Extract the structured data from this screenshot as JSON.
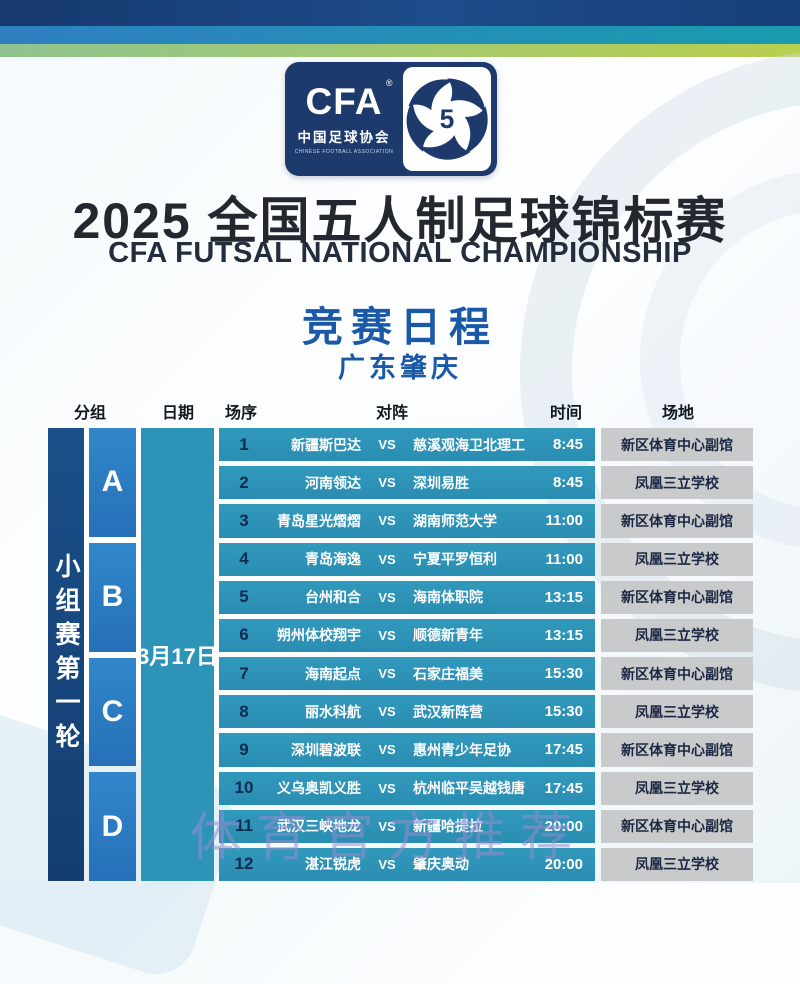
{
  "page": {
    "title_cn": "2025 全国五人制足球锦标赛",
    "title_en": "CFA FUTSAL NATIONAL CHAMPIONSHIP",
    "subtitle": "竞赛日程",
    "location": "广东肇庆",
    "watermark": "体育官方推荐"
  },
  "logo": {
    "abbr": "CFA",
    "reg_mark": "®",
    "name_cn": "中国足球协会",
    "name_en": "CHINESE FOOTBALL ASSOCIATION",
    "emblem_number": "5"
  },
  "colors": {
    "navy": "#1e3a6c",
    "heading_blue": "#1a58a8",
    "row_teal": "#2e94b7",
    "group_blue": "#2b7cc2",
    "round_bar": "#174a80",
    "venue_gray": "#c9cacb",
    "stripe_green": "#b9cf4f"
  },
  "table": {
    "headers": {
      "group": "分组",
      "date": "日期",
      "no": "场序",
      "match": "对阵",
      "time": "时间",
      "venue": "场地"
    },
    "round_label": "小组赛第一轮",
    "date": "3月17日",
    "vs_label": "VS",
    "groups": [
      {
        "label": "A"
      },
      {
        "label": "B"
      },
      {
        "label": "C"
      },
      {
        "label": "D"
      }
    ],
    "matches": [
      {
        "no": "1",
        "home": "新疆斯巴达",
        "away": "慈溪观海卫北理工",
        "time": "8:45",
        "venue": "新区体育中心副馆"
      },
      {
        "no": "2",
        "home": "河南领达",
        "away": "深圳易胜",
        "time": "8:45",
        "venue": "凤凰三立学校"
      },
      {
        "no": "3",
        "home": "青岛星光熠熠",
        "away": "湖南师范大学",
        "time": "11:00",
        "venue": "新区体育中心副馆"
      },
      {
        "no": "4",
        "home": "青岛海逸",
        "away": "宁夏平罗恒利",
        "time": "11:00",
        "venue": "凤凰三立学校"
      },
      {
        "no": "5",
        "home": "台州和合",
        "away": "海南体职院",
        "time": "13:15",
        "venue": "新区体育中心副馆"
      },
      {
        "no": "6",
        "home": "朔州体校翔宇",
        "away": "顺德新青年",
        "time": "13:15",
        "venue": "凤凰三立学校"
      },
      {
        "no": "7",
        "home": "海南起点",
        "away": "石家庄福美",
        "time": "15:30",
        "venue": "新区体育中心副馆"
      },
      {
        "no": "8",
        "home": "丽水科航",
        "away": "武汉新阵营",
        "time": "15:30",
        "venue": "凤凰三立学校"
      },
      {
        "no": "9",
        "home": "深圳碧波联",
        "away": "惠州青少年足协",
        "time": "17:45",
        "venue": "新区体育中心副馆"
      },
      {
        "no": "10",
        "home": "义乌奥凯义胜",
        "away": "杭州临平吴越钱唐",
        "time": "17:45",
        "venue": "凤凰三立学校"
      },
      {
        "no": "11",
        "home": "武汉三峡地龙",
        "away": "新疆哈提拉",
        "time": "20:00",
        "venue": "新区体育中心副馆"
      },
      {
        "no": "12",
        "home": "湛江锐虎",
        "away": "肇庆奥动",
        "time": "20:00",
        "venue": "凤凰三立学校"
      }
    ]
  }
}
